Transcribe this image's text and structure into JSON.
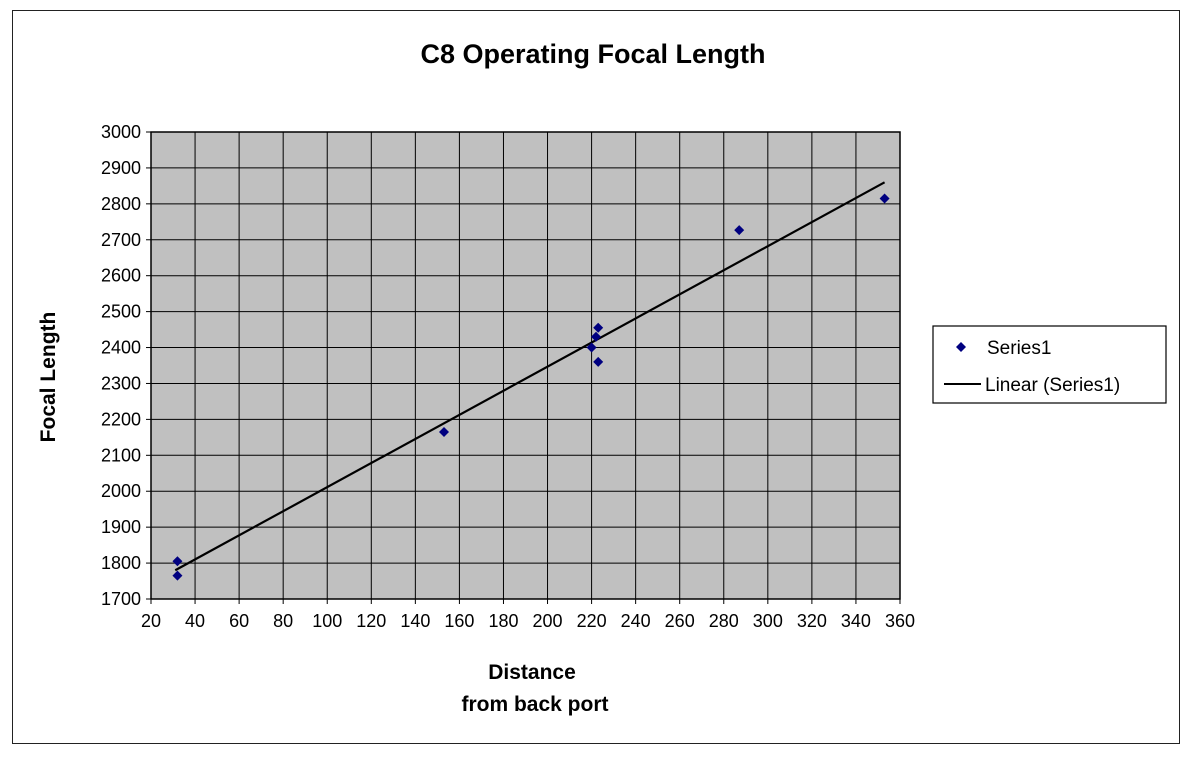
{
  "chart_data": {
    "type": "scatter",
    "title": "C8 Operating Focal Length",
    "xlabel": [
      "Distance",
      "from back port"
    ],
    "ylabel": "Focal Length",
    "xlim": [
      20,
      360
    ],
    "ylim": [
      1700,
      3000
    ],
    "xticks": [
      20,
      40,
      60,
      80,
      100,
      120,
      140,
      160,
      180,
      200,
      220,
      240,
      260,
      280,
      300,
      320,
      340,
      360
    ],
    "yticks": [
      1700,
      1800,
      1900,
      2000,
      2100,
      2200,
      2300,
      2400,
      2500,
      2600,
      2700,
      2800,
      2900,
      3000
    ],
    "grid": true,
    "plot_background": "#c0c0c0",
    "series": [
      {
        "name": "Series1",
        "marker": "diamond",
        "color": "#000080",
        "points": [
          {
            "x": 32,
            "y": 1805
          },
          {
            "x": 32,
            "y": 1765
          },
          {
            "x": 153,
            "y": 2165
          },
          {
            "x": 220,
            "y": 2400
          },
          {
            "x": 222,
            "y": 2430
          },
          {
            "x": 223,
            "y": 2455
          },
          {
            "x": 223,
            "y": 2360
          },
          {
            "x": 287,
            "y": 2727
          },
          {
            "x": 353,
            "y": 2815
          }
        ]
      }
    ],
    "trendline": {
      "name": "Linear (Series1)",
      "type": "linear",
      "color": "#000000",
      "from": {
        "x": 31,
        "y": 1780
      },
      "to": {
        "x": 353,
        "y": 2860
      }
    },
    "legend": {
      "position": "right",
      "entries": [
        "Series1",
        "Linear (Series1)"
      ]
    }
  }
}
